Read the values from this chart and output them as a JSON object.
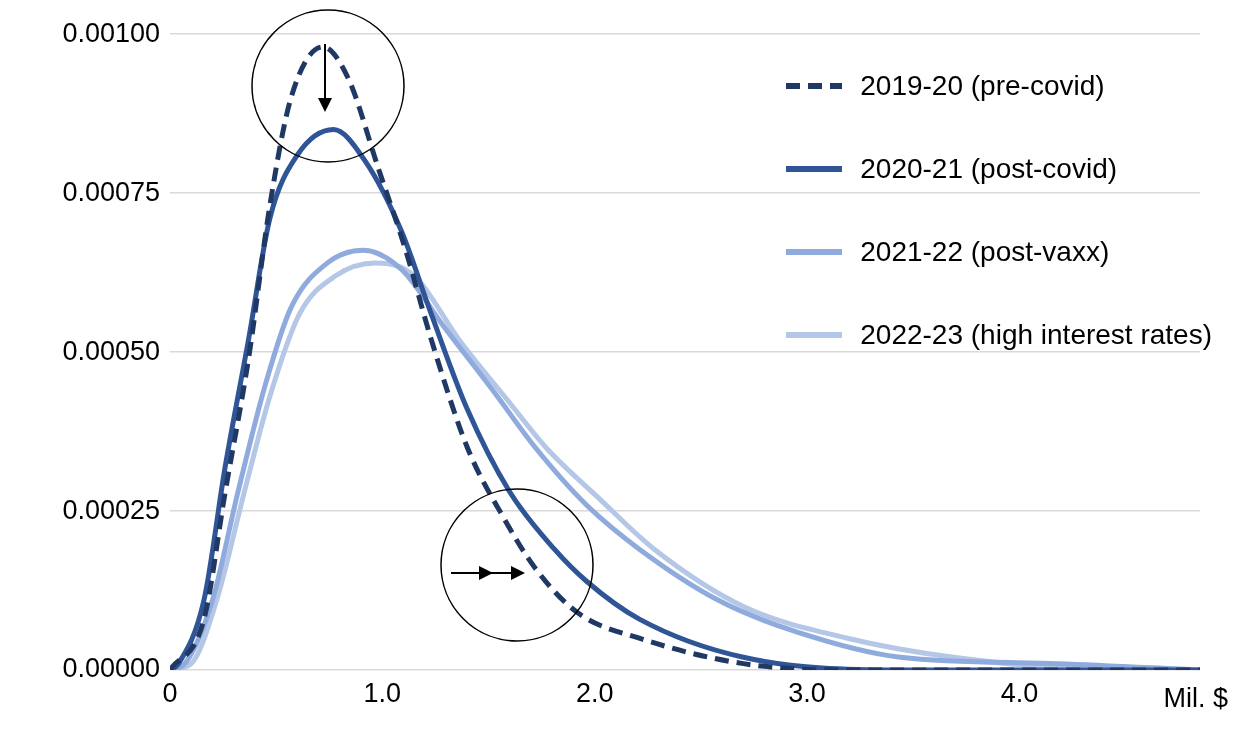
{
  "chart_data": {
    "type": "line",
    "xlabel": "Mil. $",
    "xlim": [
      0,
      4.85
    ],
    "xticks": [
      0,
      {
        "value": 1,
        "label": "1.0"
      },
      {
        "value": 2,
        "label": "2.0"
      },
      {
        "value": 3,
        "label": "3.0"
      },
      {
        "value": 4,
        "label": "4.0"
      }
    ],
    "ylim": [
      0,
      0.001
    ],
    "yticks": [
      {
        "value": 0,
        "label": "0.00000"
      },
      {
        "value": 0.00025,
        "label": "0.00025"
      },
      {
        "value": 0.0005,
        "label": "0.00050"
      },
      {
        "value": 0.00075,
        "label": "0.00075"
      },
      {
        "value": 0.001,
        "label": "0.00100"
      }
    ],
    "grid": "y",
    "legend": "top right",
    "marker": "none",
    "series": [
      {
        "name": "2019-20 (pre-covid)",
        "color": "#203864",
        "line_style": "dashed",
        "x": [
          0,
          0.16,
          0.26,
          0.37,
          0.47,
          0.57,
          0.72,
          0.84,
          0.98,
          1.11,
          1.23,
          1.4,
          1.57,
          1.72,
          1.92,
          2.21,
          2.7,
          3.19,
          4.85
        ],
        "values": [
          0,
          8e-05,
          0.00028,
          0.00049,
          0.00073,
          0.0009,
          0.00098,
          0.00093,
          0.00079,
          0.00066,
          0.00052,
          0.00035,
          0.00024,
          0.00016,
          9e-05,
          5e-05,
          1e-05,
          0,
          0
        ]
      },
      {
        "name": "2020-21 (post-covid)",
        "color": "#2f5597",
        "line_style": "solid",
        "x": [
          0,
          0.04,
          0.16,
          0.26,
          0.37,
          0.47,
          0.6,
          0.77,
          0.92,
          1.09,
          1.23,
          1.4,
          1.6,
          1.81,
          1.96,
          2.21,
          2.7,
          3.44,
          4.85
        ],
        "values": [
          0,
          1e-05,
          0.00011,
          0.00032,
          0.00052,
          0.00071,
          0.00081,
          0.00085,
          0.0008,
          0.00069,
          0.00056,
          0.00041,
          0.00028,
          0.00019,
          0.00014,
          8e-05,
          2e-05,
          0,
          0
        ]
      },
      {
        "name": "2021-22 (post-vaxx)",
        "color": "#8faadc",
        "line_style": "solid",
        "x": [
          0,
          0.07,
          0.2,
          0.32,
          0.45,
          0.57,
          0.74,
          0.91,
          1.09,
          1.29,
          1.52,
          1.72,
          1.96,
          2.21,
          2.58,
          2.95,
          3.44,
          4.18,
          4.85
        ],
        "values": [
          0,
          1e-05,
          0.00011,
          0.00028,
          0.00045,
          0.00057,
          0.00064,
          0.00066,
          0.00063,
          0.00054,
          0.00044,
          0.00035,
          0.00026,
          0.00019,
          0.00011,
          6e-05,
          2e-05,
          1e-05,
          0
        ]
      },
      {
        "name": "2022-23 (high interest rates)",
        "color": "#b4c7e7",
        "line_style": "solid",
        "x": [
          0,
          0.1,
          0.22,
          0.35,
          0.47,
          0.61,
          0.78,
          0.97,
          1.15,
          1.36,
          1.6,
          1.77,
          2.02,
          2.28,
          2.7,
          3.19,
          3.69,
          4.42,
          4.85
        ],
        "values": [
          0,
          1e-05,
          0.00011,
          0.00028,
          0.00043,
          0.00056,
          0.00062,
          0.00064,
          0.00062,
          0.00052,
          0.00042,
          0.00035,
          0.00027,
          0.00019,
          0.0001,
          5e-05,
          2e-05,
          0,
          0
        ]
      }
    ]
  }
}
